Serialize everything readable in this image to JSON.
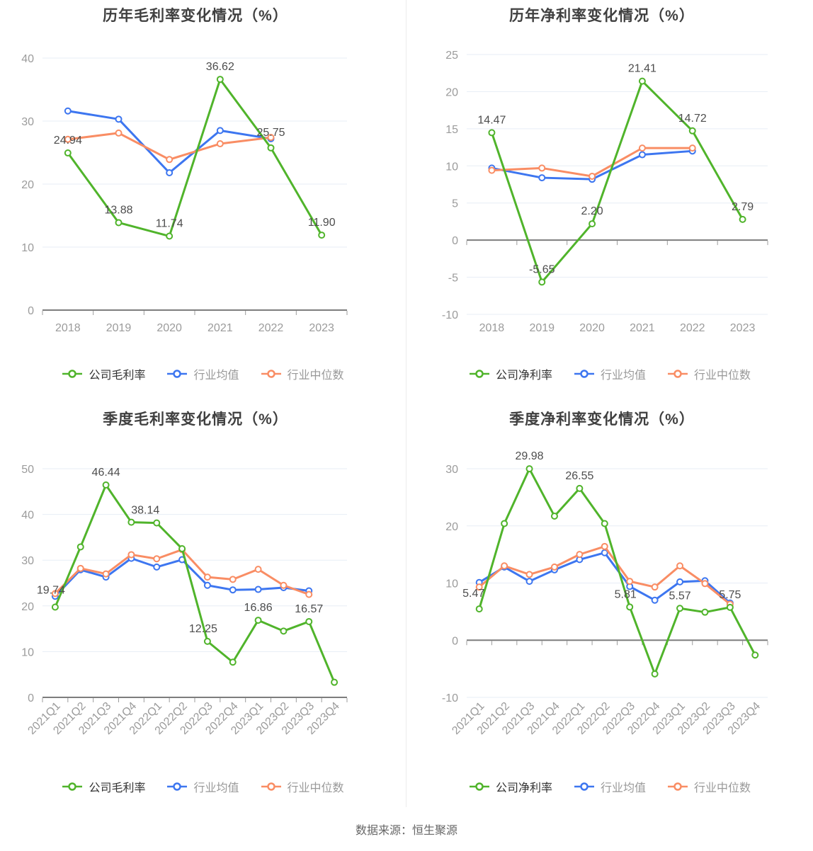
{
  "page": {
    "source_note": "数据来源：恒生聚源"
  },
  "chart_data": [
    {
      "type": "line",
      "title": "历年毛利率变化情况（%）",
      "categories": [
        "2018",
        "2019",
        "2020",
        "2021",
        "2022",
        "2023"
      ],
      "y_ticks": [
        0,
        10,
        20,
        30,
        40
      ],
      "ylim": [
        0,
        40
      ],
      "grid": true,
      "legend_position": "bottom",
      "series": [
        {
          "key": "company-gross-margin",
          "name": "公司毛利率",
          "color": "#50B42B",
          "values": [
            24.94,
            13.88,
            11.74,
            36.62,
            25.75,
            11.9
          ],
          "labels": [
            {
              "index": 0,
              "text": "24.94"
            },
            {
              "index": 1,
              "text": "13.88"
            },
            {
              "index": 2,
              "text": "11.74"
            },
            {
              "index": 3,
              "text": "36.62"
            },
            {
              "index": 4,
              "text": "25.75",
              "dy": -4
            },
            {
              "index": 5,
              "text": "11.90"
            }
          ]
        },
        {
          "key": "industry-mean",
          "name": "行业均值",
          "color": "#3D76F0",
          "values": [
            31.6,
            30.3,
            21.8,
            28.5,
            27.2,
            null
          ],
          "labels": []
        },
        {
          "key": "industry-median",
          "name": "行业中位数",
          "color": "#F98D64",
          "values": [
            27.1,
            28.1,
            23.9,
            26.4,
            27.4,
            null
          ],
          "labels": []
        }
      ]
    },
    {
      "type": "line",
      "title": "历年净利率变化情况（%）",
      "categories": [
        "2018",
        "2019",
        "2020",
        "2021",
        "2022",
        "2023"
      ],
      "y_ticks": [
        -10,
        -5,
        0,
        5,
        10,
        15,
        20,
        25
      ],
      "ylim": [
        -10,
        25
      ],
      "grid": true,
      "legend_position": "bottom",
      "series": [
        {
          "key": "company-net-margin",
          "name": "公司净利率",
          "color": "#50B42B",
          "values": [
            14.47,
            -5.65,
            2.2,
            21.41,
            14.72,
            2.79
          ],
          "labels": [
            {
              "index": 0,
              "text": "14.47"
            },
            {
              "index": 1,
              "text": "-5.65"
            },
            {
              "index": 2,
              "text": "2.20"
            },
            {
              "index": 3,
              "text": "21.41"
            },
            {
              "index": 4,
              "text": "14.72"
            },
            {
              "index": 5,
              "text": "2.79"
            }
          ]
        },
        {
          "key": "industry-mean",
          "name": "行业均值",
          "color": "#3D76F0",
          "values": [
            9.7,
            8.4,
            8.2,
            11.5,
            12.0,
            null
          ],
          "labels": []
        },
        {
          "key": "industry-median",
          "name": "行业中位数",
          "color": "#F98D64",
          "values": [
            9.4,
            9.7,
            8.6,
            12.4,
            12.4,
            null
          ],
          "labels": []
        }
      ]
    },
    {
      "type": "line",
      "title": "季度毛利率变化情况（%）",
      "categories": [
        "2021Q1",
        "2021Q2",
        "2021Q3",
        "2021Q4",
        "2022Q1",
        "2022Q2",
        "2022Q3",
        "2022Q4",
        "2023Q1",
        "2023Q2",
        "2023Q3",
        "2023Q4"
      ],
      "y_ticks": [
        0,
        10,
        20,
        30,
        40,
        50
      ],
      "ylim": [
        0,
        50
      ],
      "grid": true,
      "legend_position": "bottom",
      "series": [
        {
          "key": "company-gross-margin",
          "name": "公司毛利率",
          "color": "#50B42B",
          "values": [
            19.74,
            32.9,
            46.44,
            38.3,
            38.14,
            32.5,
            12.25,
            7.7,
            16.86,
            14.5,
            16.57,
            3.3
          ],
          "labels": [
            {
              "index": 0,
              "text": "19.74",
              "dx": -6,
              "dy": -6
            },
            {
              "index": 2,
              "text": "46.44"
            },
            {
              "index": 4,
              "text": "38.14",
              "dx": -16
            },
            {
              "index": 6,
              "text": "12.25",
              "dx": -6
            },
            {
              "index": 8,
              "text": "16.86"
            },
            {
              "index": 10,
              "text": "16.57"
            }
          ]
        },
        {
          "key": "industry-mean",
          "name": "行业均值",
          "color": "#3D76F0",
          "values": [
            22.1,
            27.9,
            26.3,
            30.4,
            28.5,
            30.1,
            24.5,
            23.5,
            23.6,
            24.0,
            23.3,
            null
          ],
          "labels": []
        },
        {
          "key": "industry-median",
          "name": "行业中位数",
          "color": "#F98D64",
          "values": [
            22.7,
            28.2,
            27.0,
            31.2,
            30.3,
            32.3,
            26.3,
            25.8,
            28.0,
            24.5,
            22.5,
            null
          ],
          "labels": []
        }
      ]
    },
    {
      "type": "line",
      "title": "季度净利率变化情况（%）",
      "categories": [
        "2021Q1",
        "2021Q2",
        "2021Q3",
        "2021Q4",
        "2022Q1",
        "2022Q2",
        "2022Q3",
        "2022Q4",
        "2023Q1",
        "2023Q2",
        "2023Q3",
        "2023Q4"
      ],
      "y_ticks": [
        -10,
        0,
        10,
        20,
        30
      ],
      "ylim": [
        -10,
        30
      ],
      "grid": true,
      "legend_position": "bottom",
      "series": [
        {
          "key": "company-net-margin",
          "name": "公司净利率",
          "color": "#50B42B",
          "values": [
            5.47,
            20.4,
            29.98,
            21.7,
            26.55,
            20.4,
            5.81,
            -5.9,
            5.57,
            4.9,
            5.75,
            -2.6
          ],
          "labels": [
            {
              "index": 0,
              "text": "5.47",
              "dx": -8,
              "dy": -4
            },
            {
              "index": 2,
              "text": "29.98"
            },
            {
              "index": 4,
              "text": "26.55"
            },
            {
              "index": 6,
              "text": "5.81",
              "dx": -6
            },
            {
              "index": 8,
              "text": "5.57"
            },
            {
              "index": 10,
              "text": "5.75"
            }
          ]
        },
        {
          "key": "industry-mean",
          "name": "行业均值",
          "color": "#3D76F0",
          "values": [
            10.1,
            12.8,
            10.3,
            12.3,
            14.1,
            15.3,
            9.4,
            7.0,
            10.2,
            10.4,
            6.5,
            null
          ],
          "labels": []
        },
        {
          "key": "industry-median",
          "name": "行业中位数",
          "color": "#F98D64",
          "values": [
            9.3,
            13.0,
            11.5,
            12.8,
            15.0,
            16.4,
            10.3,
            9.3,
            13.0,
            9.9,
            6.3,
            null
          ],
          "labels": []
        }
      ]
    }
  ]
}
